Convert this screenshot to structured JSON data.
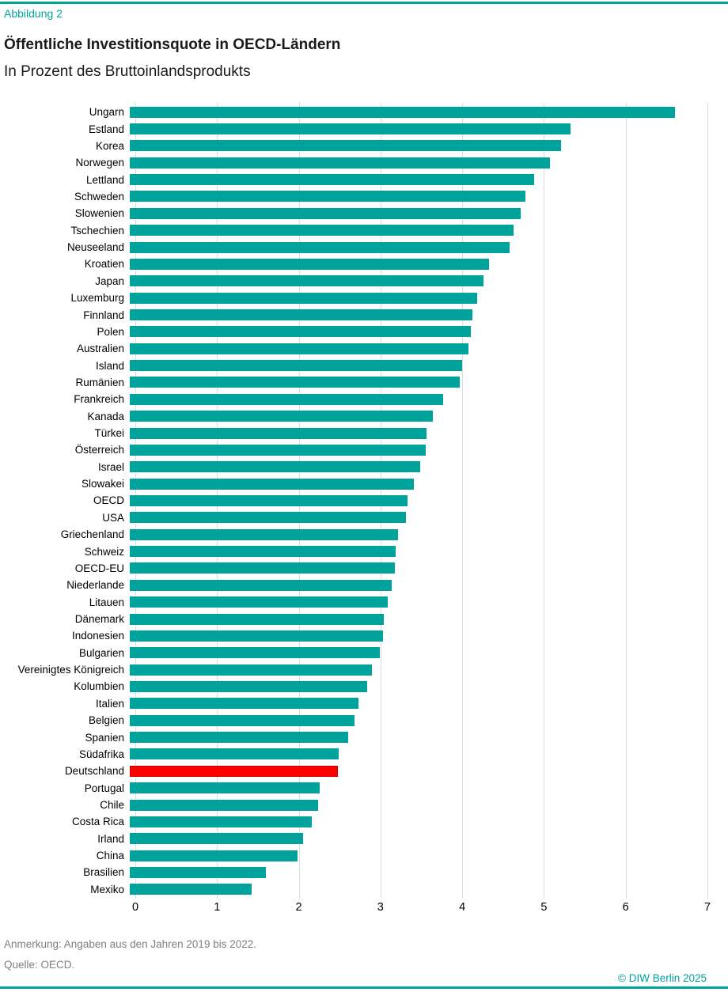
{
  "figure_label": "Abbildung 2",
  "title": "Öffentliche Investitionsquote in OECD-Ländern",
  "subtitle": "In Prozent des Bruttoinlandsprodukts",
  "note": "Anmerkung: Angaben aus den Jahren 2019 bis 2022.",
  "source": "Quelle: OECD.",
  "copyright": "© DIW Berlin 2025",
  "colors": {
    "accent": "#00A39B",
    "bar": "#00A39B",
    "highlight": "#FF0000",
    "highlight_border": "#D40000",
    "grid": "#DCDCDC",
    "muted_text": "#7F7F7F"
  },
  "chart_data": {
    "type": "bar",
    "orientation": "horizontal",
    "title": "Öffentliche Investitionsquote in OECD-Ländern",
    "subtitle": "In Prozent des Bruttoinlandsprodukts",
    "xlim": [
      0,
      7
    ],
    "xticks": [
      0,
      1,
      2,
      3,
      4,
      5,
      6,
      7
    ],
    "grid": true,
    "highlight_category": "Deutschland",
    "categories": [
      "Ungarn",
      "Estland",
      "Korea",
      "Norwegen",
      "Lettland",
      "Schweden",
      "Slowenien",
      "Tschechien",
      "Neuseeland",
      "Kroatien",
      "Japan",
      "Luxemburg",
      "Finnland",
      "Polen",
      "Australien",
      "Island",
      "Rumänien",
      "Frankreich",
      "Kanada",
      "Türkei",
      "Österreich",
      "Israel",
      "Slowakei",
      "OECD",
      "USA",
      "Griechenland",
      "Schweiz",
      "OECD-EU",
      "Niederlande",
      "Litauen",
      "Dänemark",
      "Indonesien",
      "Bulgarien",
      "Vereinigtes Königreich",
      "Kolumbien",
      "Italien",
      "Belgien",
      "Spanien",
      "Südafrika",
      "Deutschland",
      "Portugal",
      "Chile",
      "Costa Rica",
      "Irland",
      "China",
      "Brasilien",
      "Mexiko"
    ],
    "values": [
      6.61,
      5.34,
      5.23,
      5.09,
      4.9,
      4.79,
      4.74,
      4.65,
      4.6,
      4.35,
      4.29,
      4.21,
      4.15,
      4.13,
      4.1,
      4.03,
      4.0,
      3.8,
      3.67,
      3.6,
      3.59,
      3.52,
      3.44,
      3.37,
      3.35,
      3.25,
      3.22,
      3.21,
      3.17,
      3.13,
      3.08,
      3.07,
      3.03,
      2.93,
      2.88,
      2.77,
      2.72,
      2.65,
      2.53,
      2.52,
      2.3,
      2.28,
      2.21,
      2.1,
      2.03,
      1.65,
      1.48
    ]
  }
}
